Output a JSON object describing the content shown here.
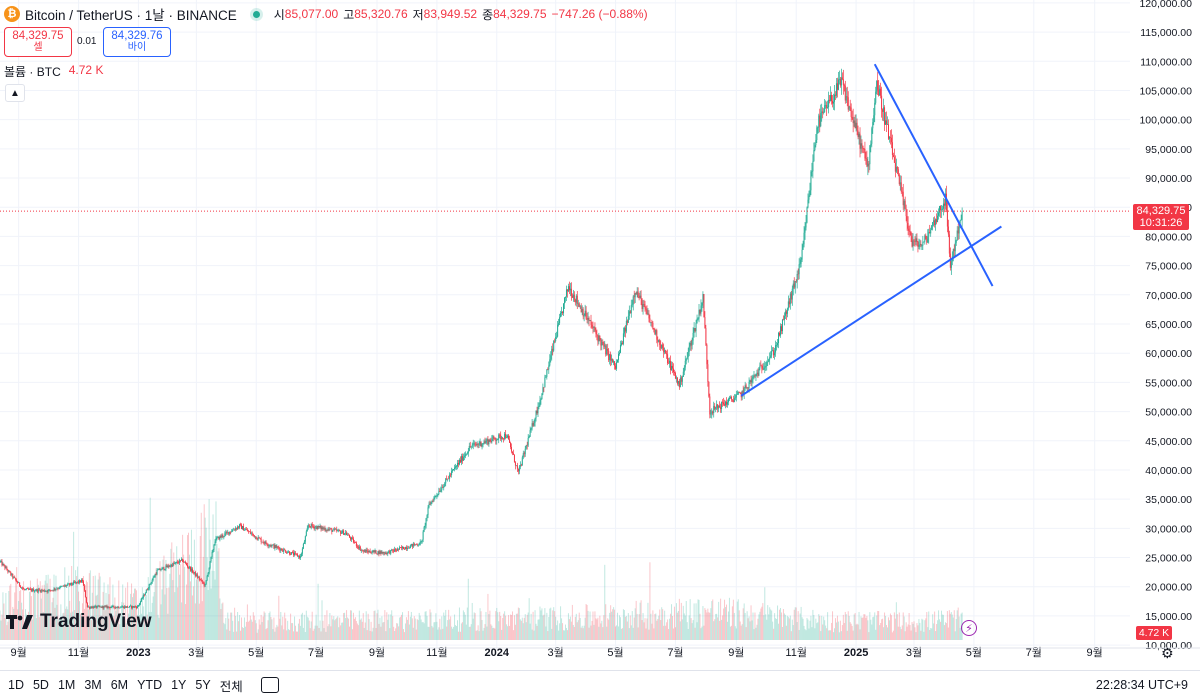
{
  "header": {
    "symbol_title": "Bitcoin / TetherUS · 1날 · BINANCE",
    "ohlc": {
      "open_label": "시",
      "open": "85,077.00",
      "high_label": "고",
      "high": "85,320.76",
      "low_label": "저",
      "low": "83,949.52",
      "close_label": "종",
      "close": "84,329.75",
      "change": "−747.26 (−0.88%)"
    },
    "sell": {
      "price": "84,329.75",
      "label": "셀"
    },
    "buy": {
      "price": "84,329.76",
      "label": "바이"
    },
    "spread": "0.01",
    "volume": {
      "label": "볼륨 · BTC",
      "value": "4.72 K"
    }
  },
  "logo_text": "TradingView",
  "price_tag": {
    "price": "84,329.75",
    "countdown": "10:31:26"
  },
  "volume_tag": "4.72 K",
  "bottom_bar": {
    "ranges": [
      "1D",
      "5D",
      "1M",
      "3M",
      "6M",
      "YTD",
      "1Y",
      "5Y",
      "전체"
    ],
    "clock": "22:28:34 UTC+9"
  },
  "colors": {
    "up": "#22ab94",
    "down": "#f23645",
    "trendline": "#2962ff",
    "grid": "#f0f3fa"
  },
  "icons": [
    "bitcoin-logo",
    "live-dot-icon",
    "chevron-up-icon",
    "compare-icon",
    "gear-icon",
    "flash-icon",
    "tradingview-logo"
  ],
  "chart_data": {
    "type": "candlestick",
    "symbol": "BTC/USDT",
    "interval": "1D",
    "y_axis_ticks": [
      "120,000.00",
      "115,000.00",
      "110,000.00",
      "105,000.00",
      "100,000.00",
      "95,000.00",
      "90,000.00",
      "85,000.00",
      "80,000.00",
      "75,000.00",
      "70,000.00",
      "65,000.00",
      "60,000.00",
      "55,000.00",
      "50,000.00",
      "45,000.00",
      "40,000.00",
      "35,000.00",
      "30,000.00",
      "25,000.00",
      "20,000.00",
      "15,000.00",
      "10,000.00"
    ],
    "y_range": [
      9500,
      120500
    ],
    "x_axis_ticks": [
      "9월",
      "11월",
      "2023",
      "3월",
      "5월",
      "7월",
      "9월",
      "11월",
      "2024",
      "3월",
      "5월",
      "7월",
      "9월",
      "11월",
      "2025",
      "3월",
      "5월",
      "7월",
      "9월"
    ],
    "x_range": [
      "2022-08-13",
      "2025-10-07"
    ],
    "current_price": 84329.75,
    "price_path": [
      [
        "2022-08-13",
        24300
      ],
      [
        "2022-09-06",
        19500
      ],
      [
        "2022-10-01",
        19300
      ],
      [
        "2022-11-05",
        21000
      ],
      [
        "2022-11-10",
        16500
      ],
      [
        "2022-12-31",
        16550
      ],
      [
        "2023-01-20",
        22700
      ],
      [
        "2023-02-15",
        24500
      ],
      [
        "2023-03-10",
        20200
      ],
      [
        "2023-03-20",
        28000
      ],
      [
        "2023-04-14",
        30400
      ],
      [
        "2023-05-10",
        27500
      ],
      [
        "2023-06-15",
        25100
      ],
      [
        "2023-06-23",
        30500
      ],
      [
        "2023-07-31",
        29200
      ],
      [
        "2023-08-17",
        26100
      ],
      [
        "2023-09-10",
        25800
      ],
      [
        "2023-10-16",
        27500
      ],
      [
        "2023-10-24",
        34000
      ],
      [
        "2023-12-05",
        44000
      ],
      [
        "2024-01-11",
        46000
      ],
      [
        "2024-01-23",
        39500
      ],
      [
        "2024-02-14",
        52000
      ],
      [
        "2024-03-14",
        71500
      ],
      [
        "2024-05-01",
        57500
      ],
      [
        "2024-05-21",
        71000
      ],
      [
        "2024-07-05",
        54500
      ],
      [
        "2024-07-29",
        69500
      ],
      [
        "2024-08-05",
        50000
      ],
      [
        "2024-09-06",
        53000
      ],
      [
        "2024-10-10",
        60500
      ],
      [
        "2024-11-06",
        75500
      ],
      [
        "2024-11-22",
        99000
      ],
      [
        "2024-12-17",
        106500
      ],
      [
        "2025-01-13",
        91800
      ],
      [
        "2025-01-22",
        106500
      ],
      [
        "2025-02-27",
        79000
      ],
      [
        "2025-03-10",
        78500
      ],
      [
        "2025-04-02",
        86500
      ],
      [
        "2025-04-07",
        75000
      ],
      [
        "2025-04-19",
        84329.75
      ]
    ],
    "volume_range": [
      0,
      46000
    ],
    "volume_path": [
      [
        "2022-08-13",
        8000
      ],
      [
        "2022-11-01",
        11000
      ],
      [
        "2023-01-01",
        8000
      ],
      [
        "2023-03-20",
        22000
      ],
      [
        "2023-03-31",
        4000
      ],
      [
        "2024-03-14",
        5000
      ],
      [
        "2024-08-05",
        6500
      ],
      [
        "2024-11-22",
        4500
      ],
      [
        "2025-02-27",
        4000
      ],
      [
        "2025-04-19",
        4720
      ]
    ],
    "trendlines": [
      {
        "points": [
          [
            "2024-09-06",
            52700
          ],
          [
            "2025-05-29",
            81700
          ]
        ]
      },
      {
        "points": [
          [
            "2025-01-20",
            109500
          ],
          [
            "2025-05-20",
            71500
          ]
        ]
      }
    ]
  }
}
